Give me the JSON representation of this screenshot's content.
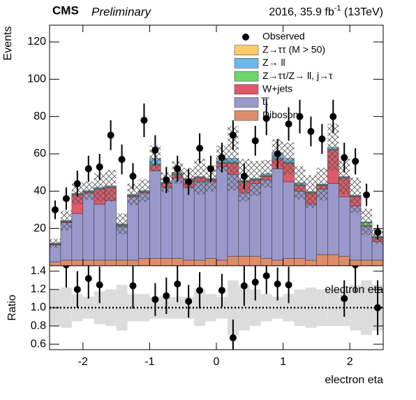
{
  "header": {
    "cms": "CMS",
    "preliminary": "Preliminary",
    "lumi": "2016, 35.9 fb",
    "lumi_sup": "-1",
    "energy": " (13TeV)"
  },
  "chart_data": [
    {
      "type": "stacked_histogram",
      "ylabel": "Events",
      "bins": [
        -2.5,
        -2.3333,
        -2.1667,
        -2,
        -1.8333,
        -1.6667,
        -1.5,
        -1.3333,
        -1.1667,
        -1,
        -0.8333,
        -0.6667,
        -0.5,
        -0.3333,
        -0.1667,
        0,
        0.1667,
        0.3333,
        0.5,
        0.6667,
        0.8333,
        1,
        1.1667,
        1.3333,
        1.5,
        1.6667,
        1.8333,
        2,
        2.1667,
        2.3333,
        2.5
      ],
      "xlim": [
        -2.5,
        2.5
      ],
      "xticks": [
        -2,
        -1,
        0,
        1,
        2
      ],
      "ylim": [
        0,
        129
      ],
      "yticks": [
        20,
        40,
        60,
        80,
        100,
        120
      ],
      "observed": {
        "name": "Observed",
        "color": "#000000",
        "values": [
          30,
          36,
          44,
          52,
          53,
          70,
          57,
          48,
          78,
          62,
          46,
          52,
          45,
          63,
          52,
          58,
          70,
          48,
          67,
          79,
          60,
          76,
          80,
          72,
          68,
          80,
          58,
          56,
          38,
          18
        ],
        "errors": [
          5,
          6,
          7,
          7,
          7,
          8,
          8,
          7,
          9,
          8,
          7,
          7,
          7,
          8,
          7,
          8,
          8,
          7,
          8,
          9,
          8,
          9,
          9,
          8,
          8,
          9,
          8,
          7,
          6,
          4
        ]
      },
      "series": [
        {
          "name": "Z→ττ (M > 50)",
          "color": "#ffcc66",
          "values": [
            0,
            0,
            0,
            0,
            0,
            0,
            0,
            0,
            0,
            0,
            0,
            0,
            0,
            0,
            0,
            0,
            0,
            0,
            0,
            0,
            0,
            0,
            0,
            0,
            0,
            0,
            0,
            0,
            0,
            0
          ]
        },
        {
          "name": "Z→ ll",
          "color": "#6cb8e8",
          "values": [
            0.3,
            0.5,
            0.5,
            0.5,
            0.7,
            0.5,
            0.5,
            0.5,
            0.5,
            3,
            0.5,
            0.5,
            0.5,
            0.5,
            0.5,
            2,
            2,
            0.5,
            0.5,
            1,
            3,
            2,
            1,
            0.5,
            0.5,
            1,
            0.5,
            0.5,
            0.5,
            0.5
          ]
        },
        {
          "name": "Z→ττ/Z→ ll, j→τ",
          "color": "#6cd66c",
          "values": [
            0.3,
            0.3,
            0.3,
            0.3,
            0.3,
            0.3,
            0.5,
            0.3,
            0.3,
            0.5,
            0.3,
            0.5,
            0.3,
            0.3,
            0.3,
            0.5,
            0.5,
            0.3,
            0.3,
            0.3,
            0.5,
            0.5,
            0.5,
            0.3,
            0.3,
            0.5,
            0.3,
            0.3,
            1.5,
            0.3
          ]
        },
        {
          "name": "W+jets",
          "color": "#de5a6a",
          "values": [
            0.5,
            0.5,
            10,
            0.5,
            8,
            7,
            0.5,
            0.5,
            0.5,
            3,
            2,
            2,
            4,
            2,
            1,
            2,
            6,
            6,
            2,
            2,
            5,
            10,
            3,
            6,
            2,
            18,
            10,
            5,
            0.5,
            2
          ]
        },
        {
          "name": "t̅t̅",
          "color": "#9999cc",
          "values": [
            9,
            20,
            25,
            36,
            30,
            32,
            18,
            34,
            35,
            47,
            38,
            43,
            39,
            42,
            41,
            50,
            44,
            34,
            39,
            42,
            49,
            41,
            36,
            30,
            35,
            38,
            32,
            29,
            18,
            10
          ]
        },
        {
          "name": "Diboson",
          "color": "#de8c6a",
          "values": [
            2,
            3,
            3,
            3,
            3,
            3,
            3,
            3,
            4,
            4,
            4,
            4,
            3,
            3,
            4,
            3,
            5,
            5,
            5,
            4,
            3,
            4,
            4,
            3,
            6,
            6,
            5,
            3,
            3,
            3
          ]
        }
      ]
    },
    {
      "type": "ratio",
      "ylabel": "Ratio",
      "xlabel": "electron eta",
      "title": "electron eta",
      "xlim": [
        -2.5,
        2.5
      ],
      "xticks": [
        -2,
        -1,
        0,
        1,
        2
      ],
      "ylim": [
        0.54,
        1.46
      ],
      "yticks": [
        0.6,
        0.8,
        {
          "value": 1,
          "label": "1.0"
        },
        1.2,
        1.4
      ],
      "values": [
        null,
        1.47,
        1.2,
        1.32,
        1.25,
        null,
        null,
        1.24,
        null,
        1.09,
        1.13,
        1.26,
        1.07,
        1.19,
        null,
        1.19,
        0.67,
        1.24,
        1.28,
        1.35,
        1.26,
        1.25,
        null,
        null,
        null,
        null,
        1.1,
        1.47,
        null,
        1.0
      ],
      "errors": [
        null,
        0.25,
        0.2,
        0.22,
        0.2,
        null,
        null,
        0.25,
        null,
        0.18,
        0.2,
        0.2,
        0.18,
        0.2,
        null,
        0.18,
        0.2,
        0.22,
        0.2,
        0.2,
        0.18,
        0.2,
        null,
        null,
        null,
        null,
        0.2,
        0.3,
        null,
        0.3
      ],
      "band_low": [
        0.8,
        0.78,
        0.85,
        0.88,
        0.82,
        0.8,
        0.75,
        0.85,
        0.85,
        0.88,
        0.88,
        0.88,
        0.88,
        0.8,
        0.85,
        0.88,
        0.7,
        0.75,
        0.8,
        0.85,
        0.88,
        0.85,
        0.8,
        0.78,
        0.8,
        0.8,
        0.8,
        0.75,
        0.7,
        0.75
      ],
      "band_high": [
        1.2,
        1.22,
        1.15,
        1.12,
        1.18,
        1.2,
        1.25,
        1.15,
        1.15,
        1.12,
        1.12,
        1.12,
        1.12,
        1.2,
        1.15,
        1.12,
        1.3,
        1.25,
        1.2,
        1.15,
        1.12,
        1.15,
        1.2,
        1.22,
        1.2,
        1.2,
        1.2,
        1.25,
        1.3,
        1.25
      ]
    }
  ]
}
